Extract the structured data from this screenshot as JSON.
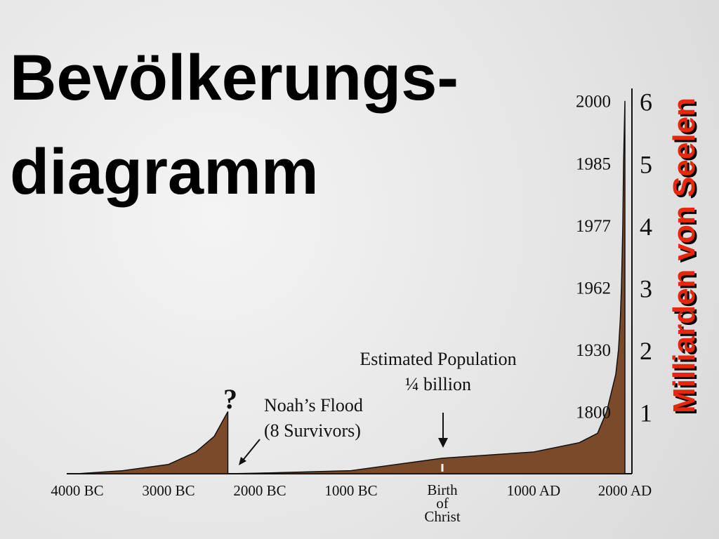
{
  "chart_data": {
    "type": "area",
    "title": [
      "Bevölkerungs-",
      "diagramm"
    ],
    "y_axis_label": "Milliarden von Seelen",
    "annotations": {
      "question": "?",
      "flood": [
        "Noah’s Flood",
        "(8 Survivors)"
      ],
      "estimate": [
        "Estimated Population",
        "¼ billion"
      ]
    },
    "xlim": [
      -4000,
      2000
    ],
    "ylim": [
      0,
      6.2
    ],
    "xticks": [
      {
        "value": -4000,
        "label": "4000 BC"
      },
      {
        "value": -3000,
        "label": "3000 BC"
      },
      {
        "value": -2000,
        "label": "2000 BC"
      },
      {
        "value": -1000,
        "label": "1000 BC"
      },
      {
        "value": 0,
        "label": "Birth of Christ"
      },
      {
        "value": 1000,
        "label": "1000 AD"
      },
      {
        "value": 2000,
        "label": "2000 AD"
      }
    ],
    "yticks": [
      1,
      2,
      3,
      4,
      5,
      6
    ],
    "ytick_years": [
      "1800",
      "1930",
      "1962",
      "1977",
      "1985",
      "2000"
    ],
    "series": [
      {
        "color": "#7b4a2b",
        "x": [
          -4000,
          -3500,
          -3000,
          -2700,
          -2500,
          -2350,
          -2350,
          -2350,
          -2000,
          -1000,
          0,
          1000,
          1500,
          1700,
          1800,
          1850,
          1900,
          1930,
          1950,
          1962,
          1977,
          1985,
          2000
        ],
        "values": [
          0,
          0.05,
          0.15,
          0.35,
          0.6,
          1.0,
          null,
          0,
          0.01,
          0.05,
          0.25,
          0.35,
          0.5,
          0.65,
          1.0,
          1.3,
          1.6,
          2,
          2.5,
          3,
          4,
          5,
          6
        ]
      }
    ]
  }
}
